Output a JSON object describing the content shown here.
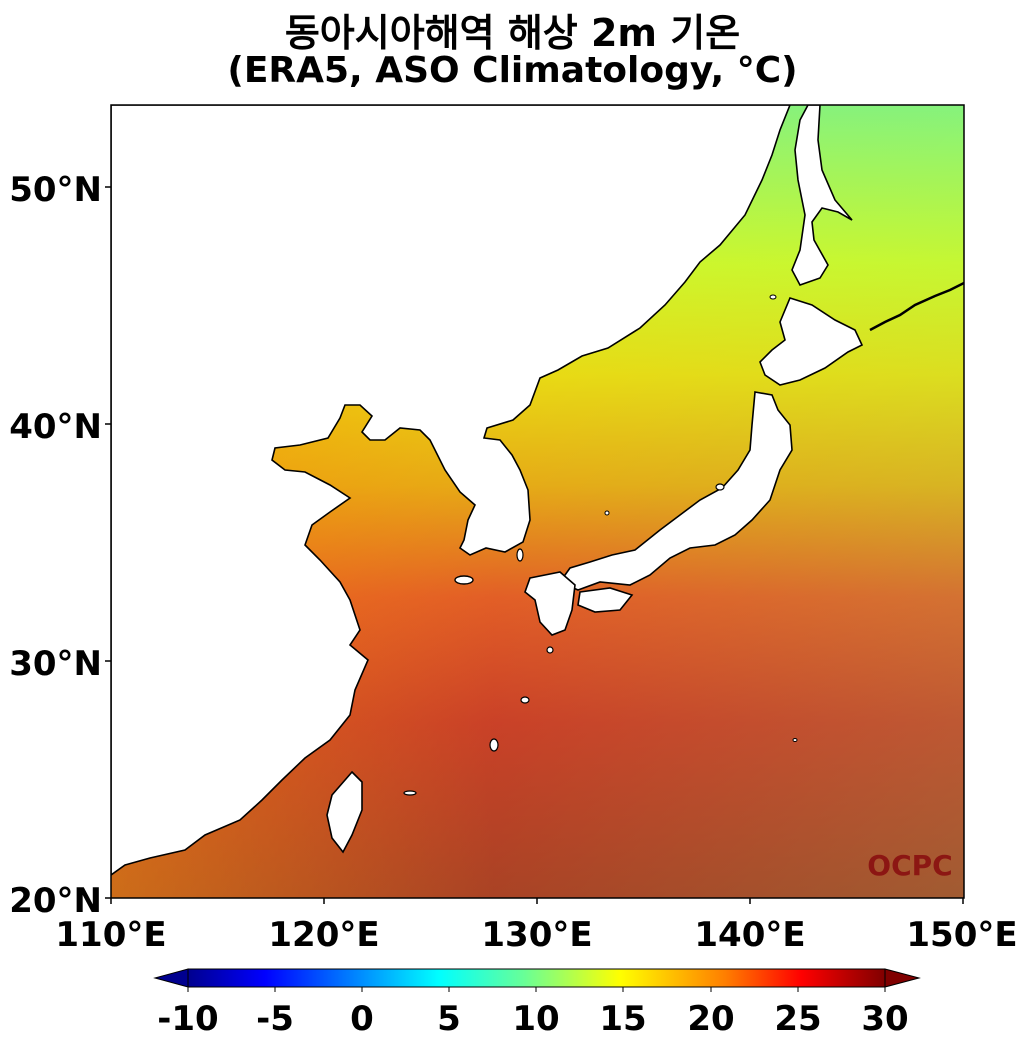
{
  "title": {
    "line1": "동아시아해역 해상 2m 기온",
    "line2": "(ERA5, ASO Climatology, °C)"
  },
  "map": {
    "lon_range": [
      110,
      150
    ],
    "lat_range": [
      20,
      53.5
    ],
    "x_ticks": [
      "110°E",
      "120°E",
      "130°E",
      "140°E",
      "150°E"
    ],
    "y_ticks": [
      "20°N",
      "30°N",
      "40°N",
      "50°N"
    ],
    "watermark": "OCPC",
    "land_color": "#ffffff",
    "coastline_color": "#000000"
  },
  "colorbar": {
    "ticks": [
      "-10",
      "-5",
      "0",
      "5",
      "10",
      "15",
      "20",
      "25",
      "30"
    ],
    "range": [
      -10,
      30
    ],
    "extend": "both",
    "colormap": "jet"
  }
}
